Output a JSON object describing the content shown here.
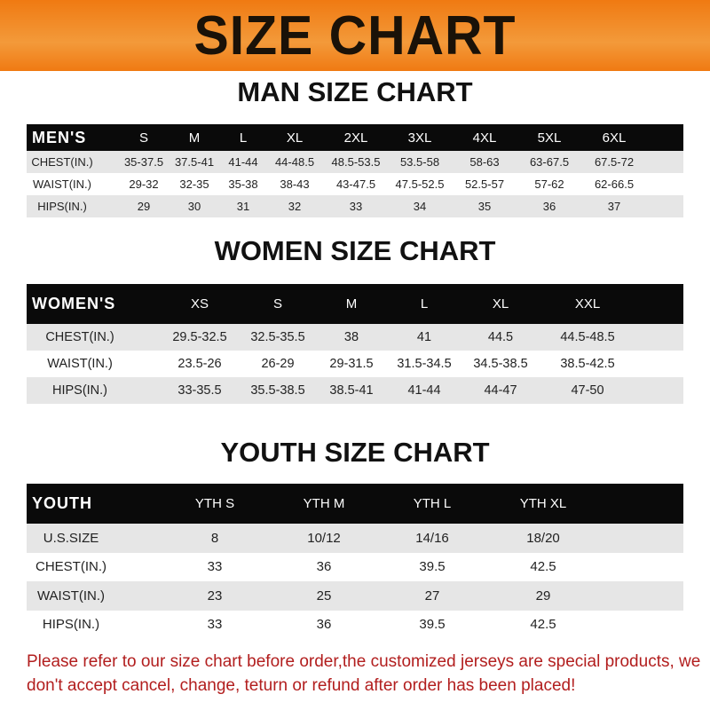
{
  "banner": "SIZE CHART",
  "colors": {
    "banner": "#f07a12",
    "header_row": "#0a0a0a",
    "note": "#b21e1e"
  },
  "tables": [
    {
      "title": "MAN SIZE CHART",
      "header": [
        "MEN'S",
        "S",
        "M",
        "L",
        "XL",
        "2XL",
        "3XL",
        "4XL",
        "5XL",
        "6XL"
      ],
      "rows": [
        [
          "CHEST(IN.)",
          "35-37.5",
          "37.5-41",
          "41-44",
          "44-48.5",
          "48.5-53.5",
          "53.5-58",
          "58-63",
          "63-67.5",
          "67.5-72"
        ],
        [
          "WAIST(IN.)",
          "29-32",
          "32-35",
          "35-38",
          "38-43",
          "43-47.5",
          "47.5-52.5",
          "52.5-57",
          "57-62",
          "62-66.5"
        ],
        [
          "HIPS(IN.)",
          "29",
          "30",
          "31",
          "32",
          "33",
          "34",
          "35",
          "36",
          "37"
        ]
      ]
    },
    {
      "title": "WOMEN SIZE CHART",
      "header": [
        "WOMEN'S",
        "XS",
        "S",
        "M",
        "L",
        "XL",
        "XXL"
      ],
      "rows": [
        [
          "CHEST(IN.)",
          "29.5-32.5",
          "32.5-35.5",
          "38",
          "41",
          "44.5",
          "44.5-48.5"
        ],
        [
          "WAIST(IN.)",
          "23.5-26",
          "26-29",
          "29-31.5",
          "31.5-34.5",
          "34.5-38.5",
          "38.5-42.5"
        ],
        [
          "HIPS(IN.)",
          "33-35.5",
          "35.5-38.5",
          "38.5-41",
          "41-44",
          "44-47",
          "47-50"
        ]
      ]
    },
    {
      "title": "YOUTH SIZE CHART",
      "header": [
        "YOUTH",
        "YTH S",
        "YTH M",
        "YTH L",
        "YTH XL"
      ],
      "rows": [
        [
          "U.S.SIZE",
          "8",
          "10/12",
          "14/16",
          "18/20"
        ],
        [
          "CHEST(IN.)",
          "33",
          "36",
          "39.5",
          "42.5"
        ],
        [
          "WAIST(IN.)",
          "23",
          "25",
          "27",
          "29"
        ],
        [
          "HIPS(IN.)",
          "33",
          "36",
          "39.5",
          "42.5"
        ]
      ]
    }
  ],
  "note": "Please refer to our size chart before order,the customized jerseys are special products, we don't accept cancel, change, teturn or refund after order has been placed!"
}
